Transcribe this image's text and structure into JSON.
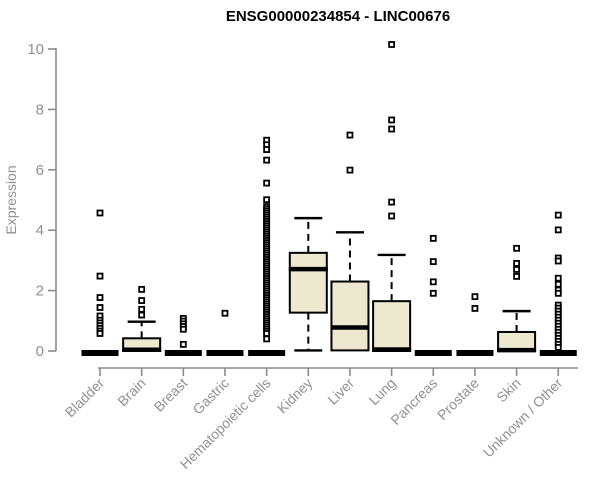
{
  "title": "ENSG00000234854 - LINC00676",
  "chart_data": {
    "type": "boxplot",
    "title": "ENSG00000234854 - LINC00676",
    "xlabel": "",
    "ylabel": "Expression",
    "ylim": [
      0,
      10
    ],
    "y_ticks": [
      0,
      2,
      4,
      6,
      8,
      10
    ],
    "grid": false,
    "legend": "none",
    "colors": {
      "box_fill": "#ede9d0",
      "box_stroke": "#000000",
      "axis": "#8c8c8c",
      "tick_label": "#919191",
      "title": "#000000"
    },
    "categories": [
      "Bladder",
      "Brain",
      "Breast",
      "Gastric",
      "Hematopoietic cells",
      "Kidney",
      "Liver",
      "Lung",
      "Pancreas",
      "Prostate",
      "Skin",
      "Unknown / Other"
    ],
    "series": [
      {
        "label": "Bladder",
        "collapsed": true,
        "q1": 0,
        "median": 0,
        "q3": 0,
        "whisker_low": 0,
        "whisker_high": 0,
        "outliers": [
          4.57,
          2.48,
          1.77,
          1.44,
          1.16,
          1.02,
          0.93,
          0.84,
          0.75,
          0.66,
          0.58
        ]
      },
      {
        "label": "Brain",
        "collapsed": false,
        "q1": 0,
        "median": 0.04,
        "q3": 0.42,
        "whisker_low": 0,
        "whisker_high": 0.97,
        "outliers": [
          2.04,
          1.67,
          1.38,
          1.19
        ]
      },
      {
        "label": "Breast",
        "collapsed": true,
        "q1": 0,
        "median": 0,
        "q3": 0,
        "whisker_low": 0,
        "whisker_high": 0,
        "outliers": [
          1.08,
          0.99,
          0.9,
          0.81,
          0.72,
          0.22
        ]
      },
      {
        "label": "Gastric",
        "collapsed": true,
        "q1": 0,
        "median": 0,
        "q3": 0,
        "whisker_low": 0,
        "whisker_high": 0,
        "outliers": [
          1.25
        ]
      },
      {
        "label": "Hematopoietic cells",
        "collapsed": true,
        "q1": 0,
        "median": 0,
        "q3": 0,
        "whisker_low": 0,
        "whisker_high": 0,
        "outliers": [
          6.98,
          6.83,
          6.67,
          6.32,
          5.56,
          5.01,
          4.78,
          4.71,
          4.64,
          4.57,
          4.5,
          4.43,
          4.36,
          4.29,
          4.22,
          4.15,
          4.08,
          4.01,
          3.94,
          3.87,
          3.8,
          3.73,
          3.66,
          3.59,
          3.52,
          3.45,
          3.38,
          3.31,
          3.24,
          3.17,
          3.1,
          3.03,
          2.96,
          2.89,
          2.82,
          2.75,
          2.68,
          2.61,
          2.54,
          2.47,
          2.4,
          2.33,
          2.26,
          2.19,
          2.12,
          2.05,
          1.98,
          1.91,
          1.84,
          1.77,
          1.7,
          1.63,
          1.56,
          1.49,
          1.42,
          1.35,
          1.28,
          1.21,
          1.14,
          1.07,
          1.0,
          0.93,
          0.86,
          0.79,
          0.72,
          0.65,
          0.58,
          0.4
        ]
      },
      {
        "label": "Kidney",
        "collapsed": false,
        "q1": 1.27,
        "median": 2.71,
        "q3": 3.25,
        "whisker_low": 0.02,
        "whisker_high": 4.4,
        "outliers": []
      },
      {
        "label": "Liver",
        "collapsed": false,
        "q1": 0.02,
        "median": 0.78,
        "q3": 2.3,
        "whisker_low": 0.02,
        "whisker_high": 3.93,
        "outliers": [
          7.15,
          5.99
        ]
      },
      {
        "label": "Lung",
        "collapsed": false,
        "q1": 0,
        "median": 0.05,
        "q3": 1.65,
        "whisker_low": 0,
        "whisker_high": 3.18,
        "outliers": [
          10.15,
          7.65,
          7.35,
          4.93,
          4.47
        ]
      },
      {
        "label": "Pancreas",
        "collapsed": true,
        "q1": 0,
        "median": 0,
        "q3": 0,
        "whisker_low": 0,
        "whisker_high": 0,
        "outliers": [
          3.73,
          2.96,
          2.29,
          1.91
        ]
      },
      {
        "label": "Prostate",
        "collapsed": true,
        "q1": 0,
        "median": 0,
        "q3": 0,
        "whisker_low": 0,
        "whisker_high": 0,
        "outliers": [
          1.8,
          1.41
        ]
      },
      {
        "label": "Skin",
        "collapsed": false,
        "q1": 0,
        "median": 0.03,
        "q3": 0.63,
        "whisker_low": 0,
        "whisker_high": 1.32,
        "outliers": [
          3.4,
          2.9,
          2.7,
          2.47
        ]
      },
      {
        "label": "Unknown / Other",
        "collapsed": true,
        "q1": 0,
        "median": 0,
        "q3": 0,
        "whisker_low": 0,
        "whisker_high": 0,
        "outliers": [
          4.5,
          4.01,
          3.08,
          2.98,
          2.41,
          2.21,
          2.02,
          1.91,
          1.52,
          1.42,
          1.32,
          1.22,
          1.12,
          1.02,
          0.92,
          0.82,
          0.72,
          0.62,
          0.52,
          0.42,
          0.32,
          0.22,
          0.12
        ]
      }
    ]
  }
}
